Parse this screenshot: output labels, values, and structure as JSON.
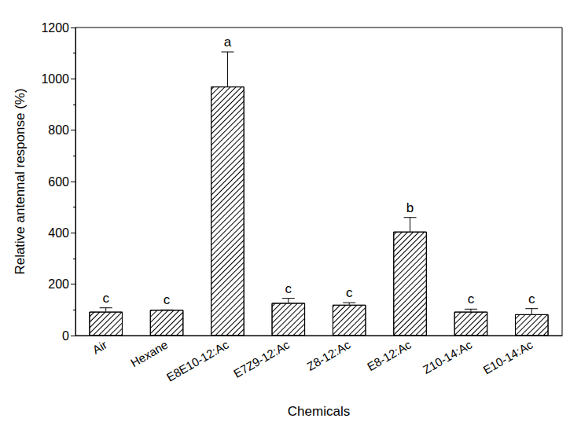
{
  "chart_data": {
    "type": "bar",
    "x_label": "Chemicals",
    "y_label": "Relative antennal response (%)",
    "categories": [
      "Air",
      "Hexane",
      "E8E10-12:Ac",
      "E7Z9-12:Ac",
      "Z8-12:Ac",
      "E8-12:Ac",
      "Z10-14:Ac",
      "E10-14:Ac"
    ],
    "values": [
      93,
      100,
      970,
      127,
      120,
      405,
      93,
      83
    ],
    "errors": [
      15,
      0,
      135,
      18,
      8,
      55,
      10,
      22
    ],
    "annotations": [
      "c",
      "c",
      "a",
      "c",
      "c",
      "b",
      "c",
      "c"
    ],
    "color": "#ffffff",
    "ylim": [
      0,
      1200
    ],
    "yticks": [
      0,
      200,
      400,
      600,
      800,
      1000,
      1200
    ],
    "grid": false
  }
}
